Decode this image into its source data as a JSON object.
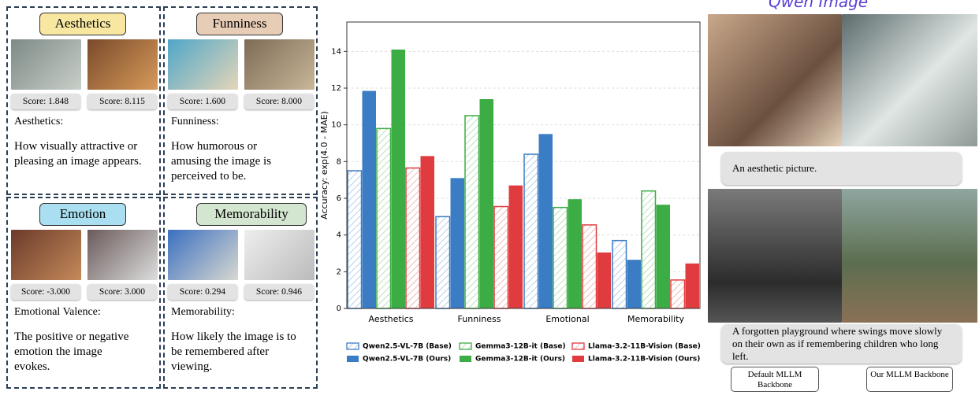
{
  "panels": [
    {
      "tag": "Aesthetics",
      "scores": [
        "Score: 1.848",
        "Score: 8.115"
      ],
      "label": "Aesthetics:",
      "description": "How visually attractive or pleasing an image appears."
    },
    {
      "tag": "Funniness",
      "scores": [
        "Score: 1.600",
        "Score: 8.000"
      ],
      "label": "Funniness:",
      "description": "How humorous or amusing the image is perceived to be."
    },
    {
      "tag": "Emotion",
      "scores": [
        "Score: -3.000",
        "Score: 3.000"
      ],
      "label": "Emotional Valence:",
      "description": "The positive or negative emotion the image evokes."
    },
    {
      "tag": "Memorability",
      "scores": [
        "Score: 0.294",
        "Score: 0.946"
      ],
      "label": "Memorability:",
      "description": "How likely the image is to be remembered after viewing."
    }
  ],
  "chart_data": {
    "type": "bar",
    "y_label": "Accuracy: exp(4.0 - MAE)",
    "categories": [
      "Aesthetics",
      "Funniness",
      "Emotional",
      "Memorability"
    ],
    "series": [
      {
        "name": "Qwen2.5-VL-7B (Base)",
        "color": "#3b7dc4",
        "hatch": true,
        "values": [
          7.5,
          5.0,
          8.4,
          3.7
        ]
      },
      {
        "name": "Qwen2.5-VL-7B (Ours)",
        "color": "#3b7dc4",
        "hatch": false,
        "values": [
          11.85,
          7.1,
          9.5,
          2.65
        ]
      },
      {
        "name": "Gemma3-12B-it (Base)",
        "color": "#3cad45",
        "hatch": true,
        "values": [
          9.8,
          10.5,
          5.5,
          6.4
        ]
      },
      {
        "name": "Gemma3-12B-it (Ours)",
        "color": "#3cad45",
        "hatch": false,
        "values": [
          14.1,
          11.4,
          5.95,
          5.65
        ]
      },
      {
        "name": "Llama-3.2-11B-Vision (Base)",
        "color": "#e03c3f",
        "hatch": true,
        "values": [
          7.65,
          5.55,
          4.55,
          1.55
        ]
      },
      {
        "name": "Llama-3.2-11B-Vision (Ours)",
        "color": "#e03c3f",
        "hatch": false,
        "values": [
          8.3,
          6.7,
          3.05,
          2.45
        ]
      }
    ],
    "ylim": [
      0,
      15.6
    ],
    "yticks": [
      0,
      2,
      4,
      6,
      8,
      10,
      12,
      14
    ],
    "grid": true
  },
  "examples": {
    "logo": "Qwen Image",
    "captions": [
      "An aesthetic picture.",
      "A forgotten playground where swings move slowly on their own as if remembering children who long left."
    ],
    "buttons": [
      "Default MLLM Backbone",
      "Our MLLM Backbone"
    ]
  }
}
